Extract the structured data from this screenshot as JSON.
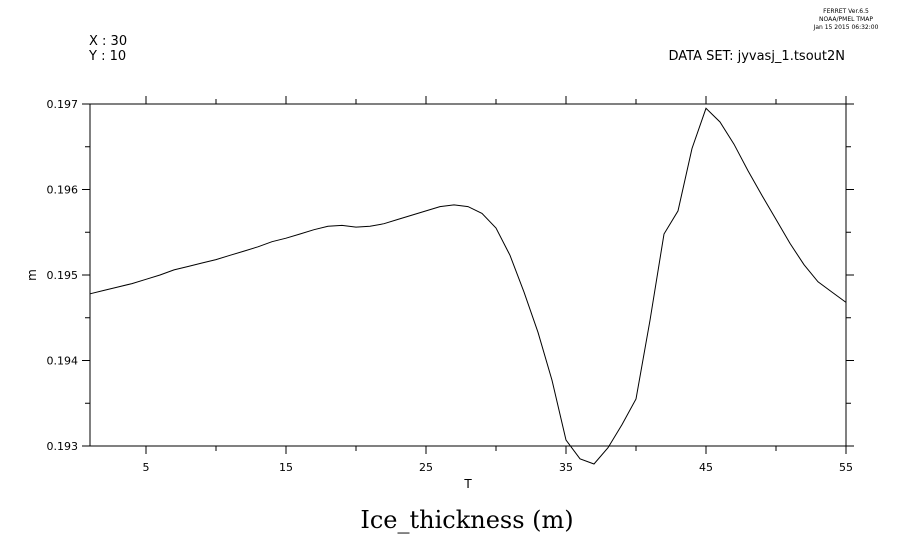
{
  "header": {
    "stamp_line1": "FERRET  Ver.6.5",
    "stamp_line2": "NOAA/PMEL TMAP",
    "stamp_line3": "Jan 15 2015 06:32:00",
    "x_coord": "X : 30",
    "y_coord": "Y : 10",
    "dataset": "DATA SET: jyvasj_1.tsout2N"
  },
  "chart_data": {
    "type": "line",
    "title": "Ice_thickness (m)",
    "xlabel": "T",
    "ylabel": "m",
    "xlim": [
      1,
      55
    ],
    "ylim": [
      0.193,
      0.197
    ],
    "x_ticks": [
      5,
      15,
      25,
      35,
      45,
      55
    ],
    "y_ticks": [
      0.193,
      0.194,
      0.195,
      0.196,
      0.197
    ],
    "x_tick_labels": [
      "5",
      "15",
      "25",
      "35",
      "45",
      "55"
    ],
    "y_tick_labels": [
      "0.193",
      "0.194",
      "0.195",
      "0.196",
      "0.197"
    ],
    "grid": false,
    "series": [
      {
        "x": [
          1,
          2,
          3,
          4,
          5,
          6,
          7,
          8,
          9,
          10,
          11,
          12,
          13,
          14,
          15,
          16,
          17,
          18,
          19,
          20,
          21,
          22,
          23,
          24,
          25,
          26,
          27,
          28,
          29,
          30,
          31,
          32,
          33,
          34,
          35,
          36,
          37,
          38,
          39,
          40,
          41,
          42,
          43,
          44,
          45,
          46,
          47,
          48,
          49,
          50,
          51,
          52,
          53,
          54,
          55
        ],
        "values": [
          0.19478,
          0.19482,
          0.19486,
          0.1949,
          0.19495,
          0.195,
          0.19506,
          0.1951,
          0.19514,
          0.19518,
          0.19523,
          0.19528,
          0.19533,
          0.19539,
          0.19543,
          0.19548,
          0.19553,
          0.19557,
          0.19558,
          0.19556,
          0.19557,
          0.1956,
          0.19565,
          0.1957,
          0.19575,
          0.1958,
          0.19582,
          0.1958,
          0.19572,
          0.19555,
          0.19523,
          0.1948,
          0.19433,
          0.19377,
          0.19307,
          0.19285,
          0.19279,
          0.19298,
          0.19325,
          0.19355,
          0.19447,
          0.19548,
          0.19575,
          0.19648,
          0.19695,
          0.19679,
          0.19653,
          0.19622,
          0.19593,
          0.19565,
          0.19537,
          0.19512,
          0.19492,
          0.1948,
          0.19468
        ]
      }
    ]
  }
}
